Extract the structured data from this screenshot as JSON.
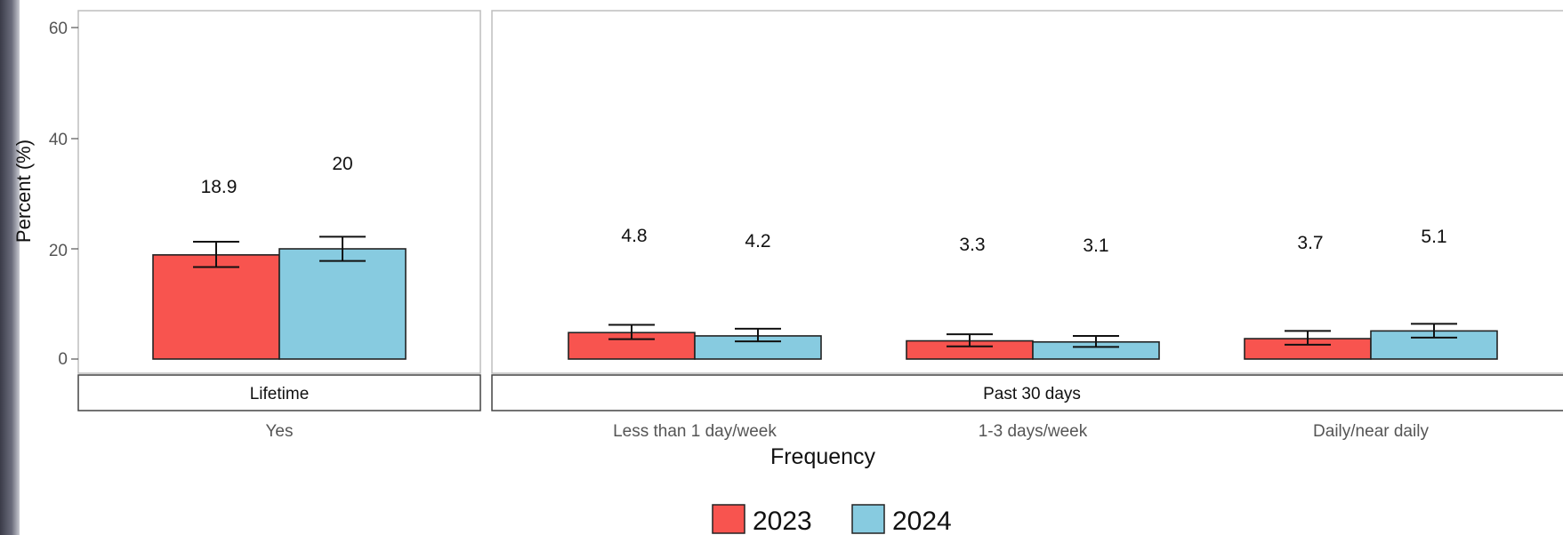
{
  "chart_data": {
    "type": "bar",
    "xlabel": "Frequency",
    "ylabel": "Percent (%)",
    "ylim": [
      0,
      60
    ],
    "yticks": [
      "0",
      "20",
      "40",
      "60"
    ],
    "grid": false,
    "legend_position": "bottom",
    "colors": {
      "2023": "#f8544f",
      "2024": "#87cbe0"
    },
    "series": [
      {
        "name": "2023",
        "values": [
          18.9,
          4.8,
          3.3,
          3.7
        ],
        "labels": [
          "18.9",
          "4.8",
          "3.3",
          "3.7"
        ],
        "error_low": [
          16.7,
          3.6,
          2.3,
          2.6
        ],
        "error_high": [
          21.3,
          6.2,
          4.5,
          5.1
        ]
      },
      {
        "name": "2024",
        "values": [
          20,
          4.2,
          3.1,
          5.1
        ],
        "labels": [
          "20",
          "4.2",
          "3.1",
          "5.1"
        ],
        "error_low": [
          17.8,
          3.2,
          2.2,
          3.9
        ],
        "error_high": [
          22.2,
          5.5,
          4.2,
          6.4
        ]
      }
    ],
    "facets": [
      {
        "label": "Lifetime",
        "categories": [
          "Yes"
        ]
      },
      {
        "label": "Past 30 days",
        "categories": [
          "Less than 1 day/week",
          "1-3 days/week",
          "Daily/near daily"
        ]
      }
    ]
  }
}
